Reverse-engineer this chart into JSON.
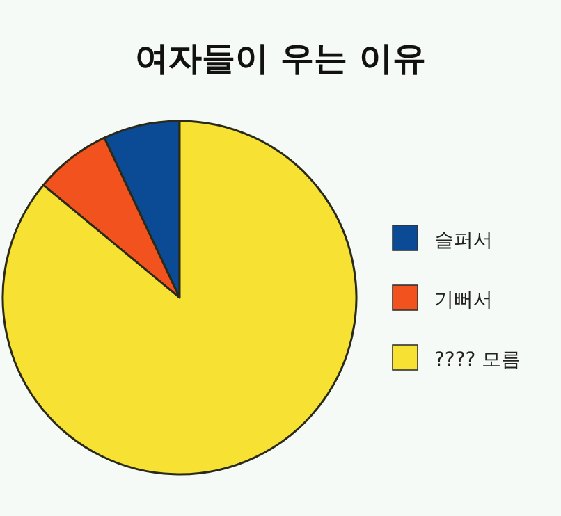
{
  "chart_data": {
    "type": "pie",
    "title": "여자들이 우는 이유",
    "categories": [
      "슬퍼서",
      "기뻐서",
      "???? 모름"
    ],
    "values": [
      7,
      7,
      86
    ],
    "colors": [
      "#0b4a94",
      "#f2521e",
      "#f7e233"
    ],
    "legend": "right"
  }
}
